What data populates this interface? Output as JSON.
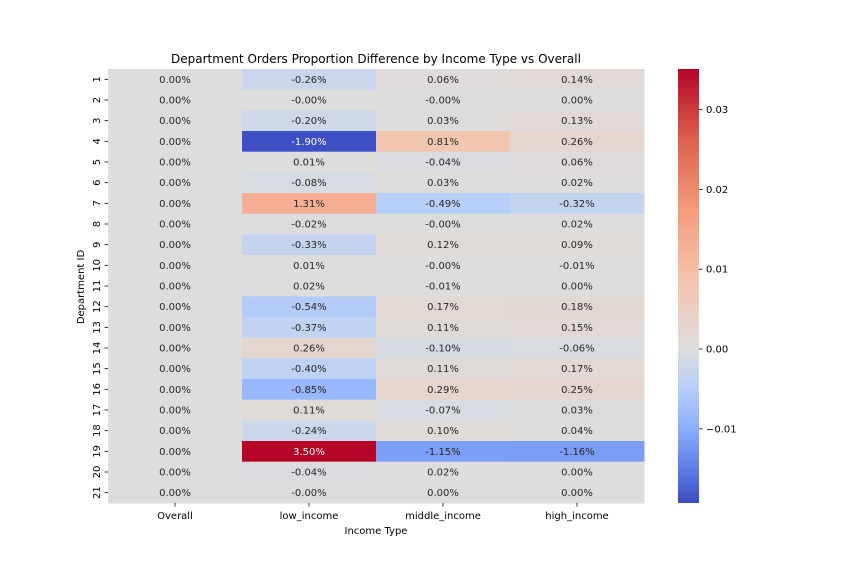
{
  "chart_data": {
    "type": "heatmap",
    "title": "Department Orders Proportion Difference by Income Type vs Overall",
    "xlabel": "Income Type",
    "ylabel": "Department ID",
    "columns": [
      "Overall",
      "low_income",
      "middle_income",
      "high_income"
    ],
    "rows": [
      "1",
      "2",
      "3",
      "4",
      "5",
      "6",
      "7",
      "8",
      "9",
      "10",
      "11",
      "12",
      "13",
      "14",
      "15",
      "16",
      "17",
      "18",
      "19",
      "20",
      "21"
    ],
    "values": [
      [
        0.0,
        -0.26,
        0.06,
        0.14
      ],
      [
        0.0,
        -0.0,
        -0.0,
        0.0
      ],
      [
        0.0,
        -0.2,
        0.03,
        0.13
      ],
      [
        0.0,
        -1.9,
        0.81,
        0.26
      ],
      [
        0.0,
        0.01,
        -0.04,
        0.06
      ],
      [
        0.0,
        -0.08,
        0.03,
        0.02
      ],
      [
        0.0,
        1.31,
        -0.49,
        -0.32
      ],
      [
        0.0,
        -0.02,
        -0.0,
        0.02
      ],
      [
        0.0,
        -0.33,
        0.12,
        0.09
      ],
      [
        0.0,
        0.01,
        -0.0,
        -0.01
      ],
      [
        0.0,
        0.02,
        -0.01,
        0.0
      ],
      [
        0.0,
        -0.54,
        0.17,
        0.18
      ],
      [
        0.0,
        -0.37,
        0.11,
        0.15
      ],
      [
        0.0,
        0.26,
        -0.1,
        -0.06
      ],
      [
        0.0,
        -0.4,
        0.11,
        0.17
      ],
      [
        0.0,
        -0.85,
        0.29,
        0.25
      ],
      [
        0.0,
        0.11,
        -0.07,
        0.03
      ],
      [
        0.0,
        -0.24,
        0.1,
        0.04
      ],
      [
        0.0,
        3.5,
        -1.15,
        -1.16
      ],
      [
        0.0,
        -0.04,
        0.02,
        0.0
      ],
      [
        0.0,
        -0.0,
        0.0,
        0.0
      ]
    ],
    "labels": [
      [
        "0.00%",
        "-0.26%",
        "0.06%",
        "0.14%"
      ],
      [
        "0.00%",
        "-0.00%",
        "-0.00%",
        "0.00%"
      ],
      [
        "0.00%",
        "-0.20%",
        "0.03%",
        "0.13%"
      ],
      [
        "0.00%",
        "-1.90%",
        "0.81%",
        "0.26%"
      ],
      [
        "0.00%",
        "0.01%",
        "-0.04%",
        "0.06%"
      ],
      [
        "0.00%",
        "-0.08%",
        "0.03%",
        "0.02%"
      ],
      [
        "0.00%",
        "1.31%",
        "-0.49%",
        "-0.32%"
      ],
      [
        "0.00%",
        "-0.02%",
        "-0.00%",
        "0.02%"
      ],
      [
        "0.00%",
        "-0.33%",
        "0.12%",
        "0.09%"
      ],
      [
        "0.00%",
        "0.01%",
        "-0.00%",
        "-0.01%"
      ],
      [
        "0.00%",
        "0.02%",
        "-0.01%",
        "0.00%"
      ],
      [
        "0.00%",
        "-0.54%",
        "0.17%",
        "0.18%"
      ],
      [
        "0.00%",
        "-0.37%",
        "0.11%",
        "0.15%"
      ],
      [
        "0.00%",
        "0.26%",
        "-0.10%",
        "-0.06%"
      ],
      [
        "0.00%",
        "-0.40%",
        "0.11%",
        "0.17%"
      ],
      [
        "0.00%",
        "-0.85%",
        "0.29%",
        "0.25%"
      ],
      [
        "0.00%",
        "0.11%",
        "-0.07%",
        "0.03%"
      ],
      [
        "0.00%",
        "-0.24%",
        "0.10%",
        "0.04%"
      ],
      [
        "0.00%",
        "3.50%",
        "-1.15%",
        "-1.16%"
      ],
      [
        "0.00%",
        "-0.04%",
        "0.02%",
        "0.00%"
      ],
      [
        "0.00%",
        "-0.00%",
        "0.00%",
        "0.00%"
      ]
    ],
    "colormap": "coolwarm",
    "center": 0,
    "colorbar": {
      "range": [
        -0.0193,
        0.0351
      ],
      "ticks": [
        -0.01,
        0.0,
        0.01,
        0.02,
        0.03
      ],
      "tick_labels": [
        "−0.01",
        "0.00",
        "0.01",
        "0.02",
        "0.03"
      ]
    },
    "grid": false
  }
}
